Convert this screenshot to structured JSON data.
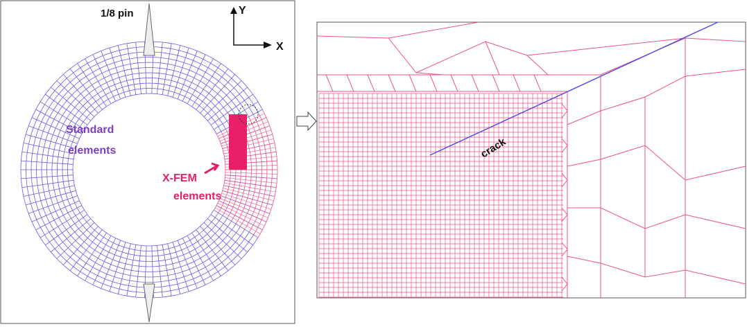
{
  "left_panel": {
    "pin_label": "1/8 pin",
    "axis_y": "Y",
    "axis_x": "X",
    "standard_label": [
      "Standard",
      "elements"
    ],
    "xfem_label": [
      "X-FEM",
      "elements"
    ]
  },
  "right_panel": {
    "crack_label": "crack"
  }
}
